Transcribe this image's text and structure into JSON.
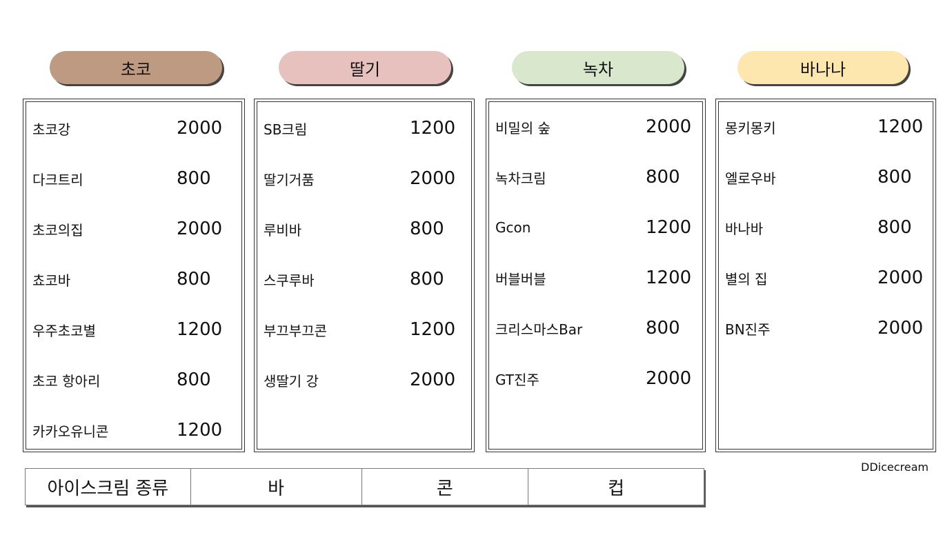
{
  "columns": [
    {
      "title": "초코",
      "color": "#bf9a82",
      "items": [
        {
          "name": "초코강",
          "price": "2000"
        },
        {
          "name": "다크트리",
          "price": "800"
        },
        {
          "name": "초코의집",
          "price": "2000"
        },
        {
          "name": "쵸코바",
          "price": "800"
        },
        {
          "name": "우주초코별",
          "price": "1200"
        },
        {
          "name": "초코 항아리",
          "price": "800"
        },
        {
          "name": "카카오유니콘",
          "price": "1200"
        }
      ]
    },
    {
      "title": "딸기",
      "color": "#e6c1be",
      "items": [
        {
          "name": "SB크림",
          "price": "1200"
        },
        {
          "name": "딸기거품",
          "price": "2000"
        },
        {
          "name": "루비바",
          "price": "800"
        },
        {
          "name": "스쿠루바",
          "price": "800"
        },
        {
          "name": "부끄부끄콘",
          "price": "1200"
        },
        {
          "name": "생딸기 강",
          "price": "2000"
        }
      ]
    },
    {
      "title": "녹차",
      "color": "#d9e8cd",
      "items": [
        {
          "name": "비밀의 숲",
          "price": "2000"
        },
        {
          "name": "녹차크림",
          "price": "800"
        },
        {
          "name": "Gcon",
          "price": "1200"
        },
        {
          "name": "버블버블",
          "price": "1200"
        },
        {
          "name": "크리스마스Bar",
          "price": "800"
        },
        {
          "name": "GT진주",
          "price": "2000"
        }
      ]
    },
    {
      "title": "바나나",
      "color": "#fee7af",
      "items": [
        {
          "name": "몽키몽키",
          "price": "1200"
        },
        {
          "name": "엘로우바",
          "price": "800"
        },
        {
          "name": "바나바",
          "price": "800"
        },
        {
          "name": "별의 집",
          "price": "2000"
        },
        {
          "name": "BN진주",
          "price": "2000"
        }
      ]
    }
  ],
  "brand": "DDicecream",
  "tabs": [
    {
      "label": "아이스크림 종류"
    },
    {
      "label": "바"
    },
    {
      "label": "콘"
    },
    {
      "label": "컵"
    }
  ]
}
